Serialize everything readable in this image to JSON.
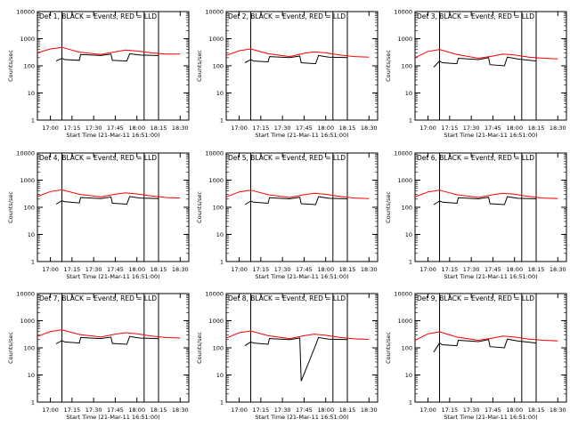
{
  "chart_data": [
    {
      "type": "line",
      "title": "Det 1, BLACK = Events, RED = LLD",
      "xlabel": "Start Time (21-Mar-11 16:51:00)",
      "ylabel": "Counts/sec",
      "yscale": "log",
      "ylim": [
        1,
        10000
      ],
      "xlim": [
        "16:51",
        "18:36"
      ],
      "x_ticks": [
        "17:00",
        "17:15",
        "17:30",
        "17:45",
        "18:00",
        "18:15",
        "18:30"
      ],
      "y_ticks": [
        "1",
        "10",
        "100",
        "1000",
        "10000"
      ],
      "markers": [
        "17:08",
        "18:05",
        "18:15"
      ],
      "grid": false,
      "series": [
        {
          "name": "LLD",
          "color": "#ff0000",
          "x": [
            "16:51",
            "17:00",
            "17:08",
            "17:20",
            "17:35",
            "17:45",
            "17:52",
            "18:00",
            "18:10",
            "18:20",
            "18:30"
          ],
          "values": [
            300,
            420,
            480,
            320,
            260,
            330,
            380,
            350,
            300,
            270,
            270
          ]
        },
        {
          "name": "Events",
          "color": "#000000",
          "x": [
            "17:04",
            "17:08",
            "17:10",
            "17:20",
            "17:21",
            "17:35",
            "17:42",
            "17:43",
            "17:53",
            "17:55",
            "18:02",
            "18:15"
          ],
          "values": [
            150,
            190,
            170,
            160,
            260,
            240,
            270,
            160,
            150,
            280,
            250,
            240
          ]
        }
      ]
    },
    {
      "type": "line",
      "title": "Det 2, BLACK = Events, RED = LLD",
      "xlabel": "Start Time (21-Mar-11 16:51:00)",
      "ylabel": "Counts/sec",
      "yscale": "log",
      "ylim": [
        1,
        10000
      ],
      "xlim": [
        "16:51",
        "18:36"
      ],
      "x_ticks": [
        "17:00",
        "17:15",
        "17:30",
        "17:45",
        "18:00",
        "18:15",
        "18:30"
      ],
      "y_ticks": [
        "1",
        "10",
        "100",
        "1000",
        "10000"
      ],
      "markers": [
        "17:08",
        "18:05",
        "18:15"
      ],
      "grid": false,
      "series": [
        {
          "name": "LLD",
          "color": "#ff0000",
          "x": [
            "16:51",
            "17:00",
            "17:08",
            "17:20",
            "17:35",
            "17:45",
            "17:52",
            "18:00",
            "18:10",
            "18:20",
            "18:30"
          ],
          "values": [
            240,
            360,
            420,
            280,
            220,
            290,
            330,
            300,
            250,
            220,
            210
          ]
        },
        {
          "name": "Events",
          "color": "#000000",
          "x": [
            "17:04",
            "17:08",
            "17:10",
            "17:20",
            "17:21",
            "17:35",
            "17:42",
            "17:43",
            "17:53",
            "17:55",
            "18:02",
            "18:15"
          ],
          "values": [
            130,
            170,
            150,
            140,
            220,
            200,
            230,
            130,
            120,
            240,
            210,
            200
          ]
        }
      ]
    },
    {
      "type": "line",
      "title": "Det 3, BLACK = Events, RED = LLD",
      "xlabel": "Start Time (21-Mar-11 16:51:00)",
      "ylabel": "Counts/sec",
      "yscale": "log",
      "ylim": [
        1,
        10000
      ],
      "xlim": [
        "16:51",
        "18:36"
      ],
      "x_ticks": [
        "17:00",
        "17:15",
        "17:30",
        "17:45",
        "18:00",
        "18:15",
        "18:30"
      ],
      "y_ticks": [
        "1",
        "10",
        "100",
        "1000",
        "10000"
      ],
      "markers": [
        "17:08",
        "18:05",
        "18:15"
      ],
      "grid": false,
      "series": [
        {
          "name": "LLD",
          "color": "#ff0000",
          "x": [
            "16:51",
            "17:00",
            "17:08",
            "17:20",
            "17:35",
            "17:45",
            "17:52",
            "18:00",
            "18:10",
            "18:20",
            "18:30"
          ],
          "values": [
            200,
            340,
            400,
            260,
            190,
            230,
            270,
            250,
            210,
            190,
            180
          ]
        },
        {
          "name": "Events",
          "color": "#000000",
          "x": [
            "17:04",
            "17:08",
            "17:10",
            "17:20",
            "17:21",
            "17:35",
            "17:42",
            "17:43",
            "17:53",
            "17:55",
            "18:02",
            "18:15"
          ],
          "values": [
            90,
            150,
            130,
            120,
            190,
            170,
            200,
            110,
            100,
            210,
            180,
            150
          ]
        }
      ]
    },
    {
      "type": "line",
      "title": "Det 4, BLACK = Events, RED = LLD",
      "xlabel": "Start Time (21-Mar-11 16:51:00)",
      "ylabel": "Counts/sec",
      "yscale": "log",
      "ylim": [
        1,
        10000
      ],
      "xlim": [
        "16:51",
        "18:36"
      ],
      "x_ticks": [
        "17:00",
        "17:15",
        "17:30",
        "17:45",
        "18:00",
        "18:15",
        "18:30"
      ],
      "y_ticks": [
        "1",
        "10",
        "100",
        "1000",
        "10000"
      ],
      "markers": [
        "17:08",
        "18:05",
        "18:15"
      ],
      "grid": false,
      "series": [
        {
          "name": "LLD",
          "color": "#ff0000",
          "x": [
            "16:51",
            "17:00",
            "17:08",
            "17:20",
            "17:35",
            "17:45",
            "17:52",
            "18:00",
            "18:10",
            "18:20",
            "18:30"
          ],
          "values": [
            250,
            380,
            440,
            300,
            240,
            300,
            340,
            310,
            260,
            230,
            220
          ]
        },
        {
          "name": "Events",
          "color": "#000000",
          "x": [
            "17:04",
            "17:08",
            "17:10",
            "17:20",
            "17:21",
            "17:35",
            "17:42",
            "17:43",
            "17:53",
            "17:55",
            "18:02",
            "18:15"
          ],
          "values": [
            130,
            175,
            160,
            145,
            230,
            210,
            240,
            140,
            130,
            250,
            220,
            210
          ]
        }
      ]
    },
    {
      "type": "line",
      "title": "Det 5, BLACK = Events, RED = LLD",
      "xlabel": "Start Time (21-Mar-11 16:51:00)",
      "ylabel": "Counts/sec",
      "yscale": "log",
      "ylim": [
        1,
        10000
      ],
      "xlim": [
        "16:51",
        "18:36"
      ],
      "x_ticks": [
        "17:00",
        "17:15",
        "17:30",
        "17:45",
        "18:00",
        "18:15",
        "18:30"
      ],
      "y_ticks": [
        "1",
        "10",
        "100",
        "1000",
        "10000"
      ],
      "markers": [
        "17:08",
        "18:05",
        "18:15"
      ],
      "grid": false,
      "series": [
        {
          "name": "LLD",
          "color": "#ff0000",
          "x": [
            "16:51",
            "17:00",
            "17:08",
            "17:20",
            "17:35",
            "17:45",
            "17:52",
            "18:00",
            "18:10",
            "18:20",
            "18:30"
          ],
          "values": [
            240,
            370,
            430,
            290,
            230,
            290,
            330,
            300,
            250,
            220,
            210
          ]
        },
        {
          "name": "Events",
          "color": "#000000",
          "x": [
            "17:04",
            "17:08",
            "17:10",
            "17:20",
            "17:21",
            "17:35",
            "17:42",
            "17:43",
            "17:53",
            "17:55",
            "18:02",
            "18:15"
          ],
          "values": [
            125,
            170,
            155,
            140,
            225,
            205,
            235,
            135,
            125,
            245,
            215,
            205
          ]
        }
      ]
    },
    {
      "type": "line",
      "title": "Det 6, BLACK = Events, RED = LLD",
      "xlabel": "Start Time (21-Mar-11 16:51:00)",
      "ylabel": "Counts/sec",
      "yscale": "log",
      "ylim": [
        1,
        10000
      ],
      "xlim": [
        "16:51",
        "18:36"
      ],
      "x_ticks": [
        "17:00",
        "17:15",
        "17:30",
        "17:45",
        "18:00",
        "18:15",
        "18:30"
      ],
      "y_ticks": [
        "1",
        "10",
        "100",
        "1000",
        "10000"
      ],
      "markers": [
        "17:08",
        "18:05",
        "18:15"
      ],
      "grid": false,
      "series": [
        {
          "name": "LLD",
          "color": "#ff0000",
          "x": [
            "16:51",
            "17:00",
            "17:08",
            "17:20",
            "17:35",
            "17:45",
            "17:52",
            "18:00",
            "18:10",
            "18:20",
            "18:30"
          ],
          "values": [
            240,
            370,
            430,
            290,
            230,
            290,
            330,
            300,
            250,
            220,
            210
          ]
        },
        {
          "name": "Events",
          "color": "#000000",
          "x": [
            "17:04",
            "17:08",
            "17:10",
            "17:20",
            "17:21",
            "17:35",
            "17:42",
            "17:43",
            "17:53",
            "17:55",
            "18:02",
            "18:15"
          ],
          "values": [
            125,
            170,
            155,
            140,
            225,
            205,
            235,
            135,
            125,
            245,
            215,
            205
          ]
        }
      ]
    },
    {
      "type": "line",
      "title": "Det 7, BLACK = Events, RED = LLD",
      "xlabel": "Start Time (21-Mar-11 16:51:00)",
      "ylabel": "Counts/sec",
      "yscale": "log",
      "ylim": [
        1,
        10000
      ],
      "xlim": [
        "16:51",
        "18:36"
      ],
      "x_ticks": [
        "17:00",
        "17:15",
        "17:30",
        "17:45",
        "18:00",
        "18:15",
        "18:30"
      ],
      "y_ticks": [
        "1",
        "10",
        "100",
        "1000",
        "10000"
      ],
      "markers": [
        "17:08",
        "18:05",
        "18:15"
      ],
      "grid": false,
      "series": [
        {
          "name": "LLD",
          "color": "#ff0000",
          "x": [
            "16:51",
            "17:00",
            "17:08",
            "17:20",
            "17:35",
            "17:45",
            "17:52",
            "18:00",
            "18:10",
            "18:20",
            "18:30"
          ],
          "values": [
            260,
            400,
            460,
            310,
            250,
            320,
            360,
            330,
            270,
            240,
            230
          ]
        },
        {
          "name": "Events",
          "color": "#000000",
          "x": [
            "17:04",
            "17:08",
            "17:10",
            "17:20",
            "17:21",
            "17:35",
            "17:42",
            "17:43",
            "17:53",
            "17:55",
            "18:02",
            "18:15"
          ],
          "values": [
            140,
            185,
            165,
            150,
            240,
            220,
            250,
            145,
            135,
            260,
            230,
            220
          ]
        }
      ]
    },
    {
      "type": "line",
      "title": "Det 8, BLACK = Events, RED = LLD",
      "xlabel": "Start Time (21-Mar-11 16:51:00)",
      "ylabel": "Counts/sec",
      "yscale": "log",
      "ylim": [
        1,
        10000
      ],
      "xlim": [
        "16:51",
        "18:36"
      ],
      "x_ticks": [
        "17:00",
        "17:15",
        "17:30",
        "17:45",
        "18:00",
        "18:15",
        "18:30"
      ],
      "y_ticks": [
        "1",
        "10",
        "100",
        "1000",
        "10000"
      ],
      "markers": [
        "17:08",
        "18:05",
        "18:15"
      ],
      "grid": false,
      "series": [
        {
          "name": "LLD",
          "color": "#ff0000",
          "x": [
            "16:51",
            "17:00",
            "17:08",
            "17:20",
            "17:35",
            "17:45",
            "17:52",
            "18:00",
            "18:10",
            "18:20",
            "18:30"
          ],
          "values": [
            230,
            360,
            420,
            280,
            220,
            280,
            320,
            290,
            240,
            215,
            205
          ]
        },
        {
          "name": "Events",
          "color": "#000000",
          "x": [
            "17:04",
            "17:08",
            "17:10",
            "17:20",
            "17:21",
            "17:35",
            "17:42",
            "17:43",
            "17:53",
            "17:55",
            "18:02",
            "18:15"
          ],
          "values": [
            120,
            165,
            150,
            135,
            220,
            200,
            230,
            6,
            125,
            240,
            210,
            200
          ]
        }
      ]
    },
    {
      "type": "line",
      "title": "Det 9, BLACK = Events, RED = LLD",
      "xlabel": "Start Time (21-Mar-11 16:51:00)",
      "ylabel": "Counts/sec",
      "yscale": "log",
      "ylim": [
        1,
        10000
      ],
      "xlim": [
        "16:51",
        "18:36"
      ],
      "x_ticks": [
        "17:00",
        "17:15",
        "17:30",
        "17:45",
        "18:00",
        "18:15",
        "18:30"
      ],
      "y_ticks": [
        "1",
        "10",
        "100",
        "1000",
        "10000"
      ],
      "markers": [
        "17:08",
        "18:05",
        "18:15"
      ],
      "grid": false,
      "series": [
        {
          "name": "LLD",
          "color": "#ff0000",
          "x": [
            "16:51",
            "17:00",
            "17:08",
            "17:20",
            "17:35",
            "17:45",
            "17:52",
            "18:00",
            "18:10",
            "18:20",
            "18:30"
          ],
          "values": [
            190,
            330,
            390,
            250,
            190,
            230,
            270,
            250,
            210,
            190,
            180
          ]
        },
        {
          "name": "Events",
          "color": "#000000",
          "x": [
            "17:04",
            "17:08",
            "17:10",
            "17:20",
            "17:21",
            "17:35",
            "17:42",
            "17:43",
            "17:53",
            "17:55",
            "18:02",
            "18:15"
          ],
          "values": [
            70,
            150,
            130,
            120,
            190,
            170,
            200,
            110,
            100,
            210,
            180,
            150
          ]
        }
      ]
    }
  ]
}
